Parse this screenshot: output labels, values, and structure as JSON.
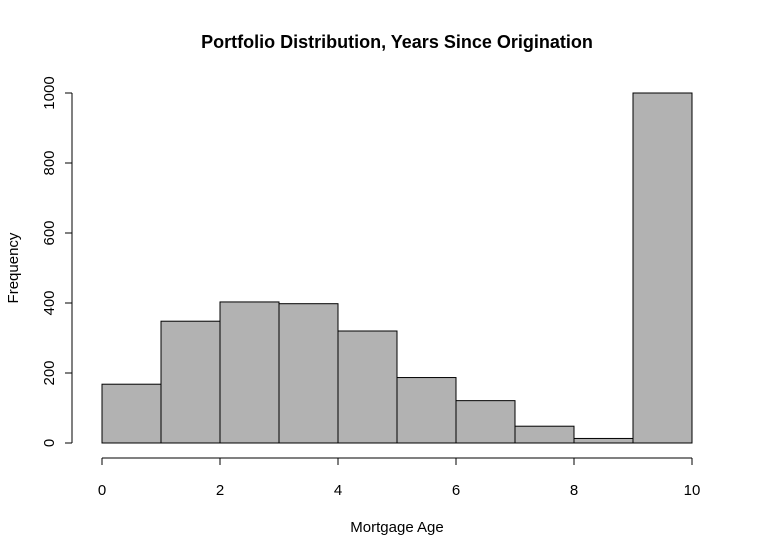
{
  "chart_data": {
    "type": "bar",
    "title": "Portfolio Distribution, Years Since Origination",
    "xlabel": "Mortgage Age",
    "ylabel": "Frequency",
    "bins": [
      {
        "x0": 0,
        "x1": 1,
        "count": 168
      },
      {
        "x0": 1,
        "x1": 2,
        "count": 348
      },
      {
        "x0": 2,
        "x1": 3,
        "count": 403
      },
      {
        "x0": 3,
        "x1": 4,
        "count": 398
      },
      {
        "x0": 4,
        "x1": 5,
        "count": 320
      },
      {
        "x0": 5,
        "x1": 6,
        "count": 187
      },
      {
        "x0": 6,
        "x1": 7,
        "count": 121
      },
      {
        "x0": 7,
        "x1": 8,
        "count": 48
      },
      {
        "x0": 8,
        "x1": 9,
        "count": 13
      },
      {
        "x0": 9,
        "x1": 10,
        "count": 1000
      }
    ],
    "x_ticks": [
      "0",
      "2",
      "4",
      "6",
      "8",
      "10"
    ],
    "y_ticks": [
      "0",
      "200",
      "400",
      "600",
      "800",
      "1000"
    ],
    "xlim": [
      0,
      10
    ],
    "ylim": [
      0,
      1000
    ],
    "grid": false,
    "bar_color": "#b2b2b2",
    "border_color": "#000000"
  }
}
